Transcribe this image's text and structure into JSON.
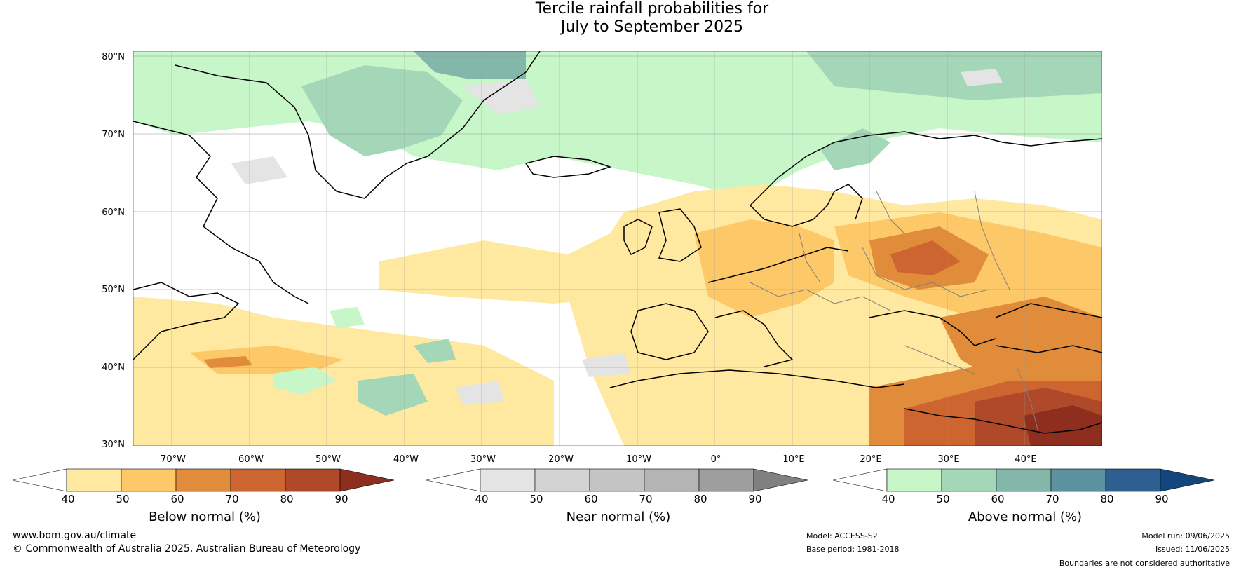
{
  "title": {
    "line1": "Tercile rainfall probabilities for",
    "line2": "July to September 2025"
  },
  "map": {
    "lat_labels": [
      "80°N",
      "70°N",
      "60°N",
      "50°N",
      "40°N",
      "30°N"
    ],
    "lon_labels": [
      "70°W",
      "60°W",
      "50°W",
      "40°W",
      "30°W",
      "20°W",
      "10°W",
      "0°",
      "10°E",
      "20°E",
      "30°E",
      "40°E"
    ],
    "colors": {
      "below": [
        "#ffe9a0",
        "#fdc867",
        "#e08c3a",
        "#cc6530",
        "#b0482a",
        "#8e2e1e"
      ],
      "near": [
        "#e4e4e4",
        "#d3d3d3",
        "#c4c4c4",
        "#b4b4b4",
        "#9e9e9e",
        "#808080"
      ],
      "above": [
        "#c7f7c9",
        "#a4d7b8",
        "#82b7aa",
        "#5c929f",
        "#2e5f91",
        "#14467e"
      ]
    }
  },
  "colorbars": [
    {
      "id": "below",
      "title": "Below normal (%)",
      "ticks": [
        "40",
        "50",
        "60",
        "70",
        "80",
        "90"
      ]
    },
    {
      "id": "near",
      "title": "Near normal (%)",
      "ticks": [
        "40",
        "50",
        "60",
        "70",
        "80",
        "90"
      ]
    },
    {
      "id": "above",
      "title": "Above normal (%)",
      "ticks": [
        "40",
        "50",
        "60",
        "70",
        "80",
        "90"
      ]
    }
  ],
  "footer": {
    "website": "www.bom.gov.au/climate",
    "copyright": "© Commonwealth of Australia 2025, Australian Bureau of Meteorology",
    "model": "Model: ACCESS-S2",
    "base_period": "Base period: 1981-2018",
    "model_run": "Model run: 09/06/2025",
    "issued": "Issued: 11/06/2025",
    "disclaimer": "Boundaries are not considered authoritative"
  }
}
